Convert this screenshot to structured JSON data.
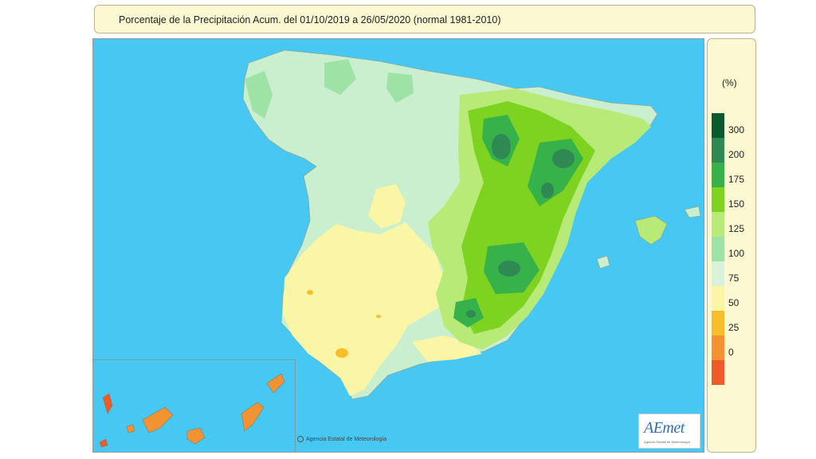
{
  "title": "Porcentaje de la Precipitación Acum. del 01/10/2019 a  26/05/2020  (normal 1981-2010)",
  "legend": {
    "unit": "(%)",
    "classes": [
      {
        "label": "300",
        "color": "#0b5a2d"
      },
      {
        "label": "200",
        "color": "#2e8a52"
      },
      {
        "label": "175",
        "color": "#37b24a"
      },
      {
        "label": "150",
        "color": "#7ed321"
      },
      {
        "label": "125",
        "color": "#b7ea77"
      },
      {
        "label": "100",
        "color": "#9ee2a6"
      },
      {
        "label": "75",
        "color": "#d8f2dc"
      },
      {
        "label": "50",
        "color": "#fbf5a6"
      },
      {
        "label": "25",
        "color": "#f7be2a"
      },
      {
        "label": "0",
        "color": "#f39233"
      },
      {
        "label": "",
        "color": "#ef5a2a"
      }
    ]
  },
  "credit": "Agencia Estatal de Meteorología",
  "logo": {
    "text": "AEmet",
    "subtitle": "Agencia Estatal de Meteorología"
  },
  "colors": {
    "sea": "#46c8f2",
    "land_base": "#c9efcf",
    "panel": "#fbf8d2"
  }
}
